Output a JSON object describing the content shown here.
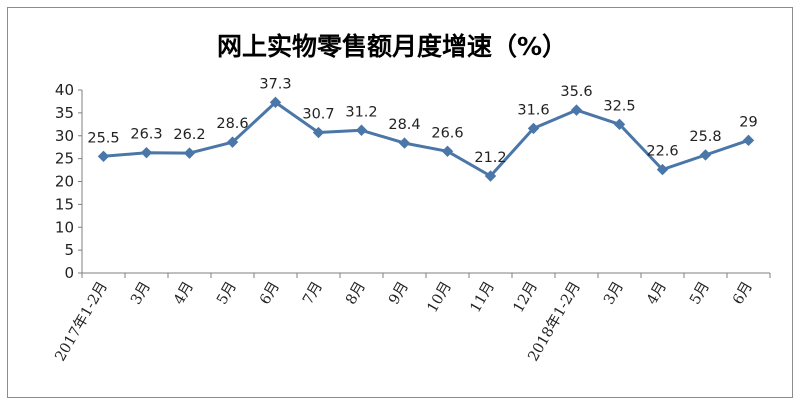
{
  "chart_data": {
    "type": "line",
    "title": "网上实物零售额月度增速（%）",
    "categories": [
      "2017年1-2月",
      "3月",
      "4月",
      "5月",
      "6月",
      "7月",
      "8月",
      "9月",
      "10月",
      "11月",
      "12月",
      "2018年1-2月",
      "3月",
      "4月",
      "5月",
      "6月"
    ],
    "series": [
      {
        "values": [
          25.5,
          26.3,
          26.2,
          28.6,
          37.3,
          30.7,
          31.2,
          28.4,
          26.6,
          21.2,
          31.6,
          35.6,
          32.5,
          22.6,
          25.8,
          29
        ],
        "data_labels": [
          "25.5",
          "26.3",
          "26.2",
          "28.6",
          "37.3",
          "30.7",
          "31.2",
          "28.4",
          "26.6",
          "21.2",
          "31.6",
          "35.6",
          "32.5",
          "22.6",
          "25.8",
          "29"
        ]
      }
    ],
    "ylim": [
      0,
      40
    ],
    "yticks": [
      "0",
      "5",
      "10",
      "15",
      "20",
      "25",
      "30",
      "35",
      "40"
    ],
    "grid": false,
    "legend": "none",
    "line_color": "#4a76a8",
    "marker_color": "#4a76a8",
    "marker": "diamond"
  }
}
